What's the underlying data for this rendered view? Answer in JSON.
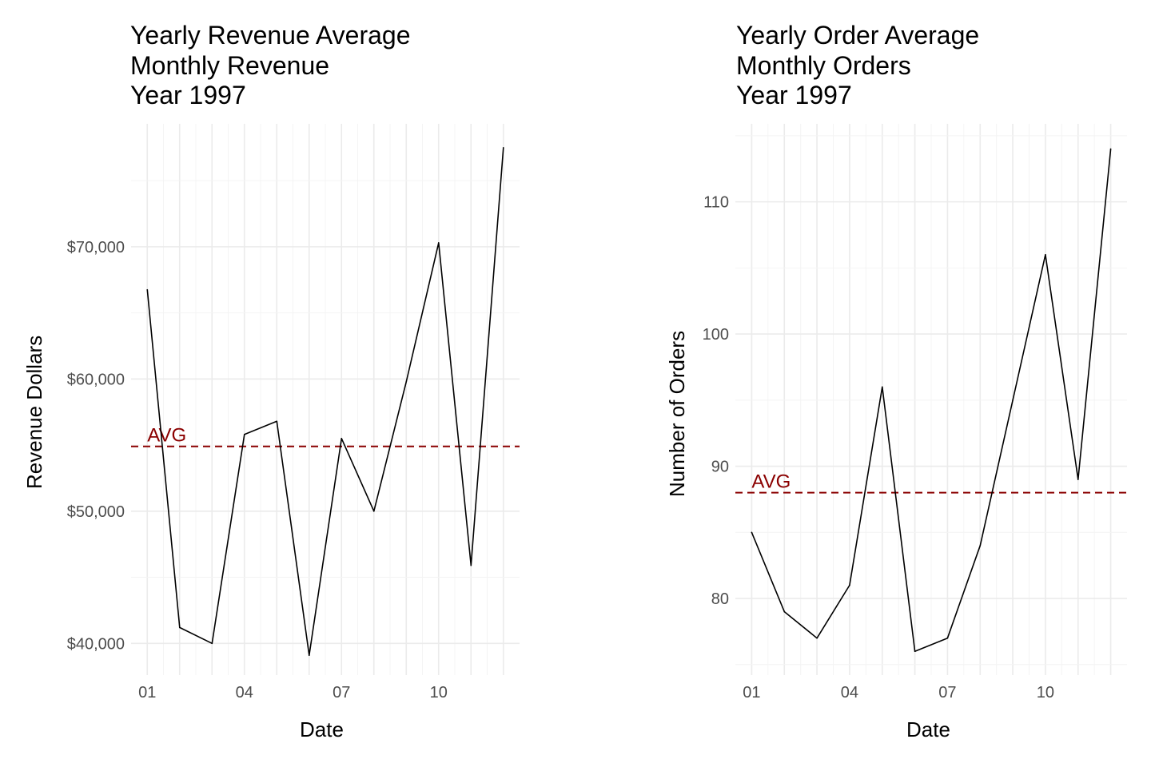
{
  "chart_data": [
    {
      "type": "line",
      "title": [
        "Yearly Revenue Average",
        "Monthly Revenue",
        "Year 1997"
      ],
      "xlabel": "Date",
      "ylabel": "Revenue Dollars",
      "x": [
        "01",
        "02",
        "03",
        "04",
        "05",
        "06",
        "07",
        "08",
        "09",
        "10",
        "11",
        "12"
      ],
      "x_tick_labels": [
        "01",
        "04",
        "07",
        "10"
      ],
      "y_tick_labels": [
        "$40,000",
        "$50,000",
        "$60,000",
        "$70,000"
      ],
      "y_ticks": [
        40000,
        50000,
        60000,
        70000
      ],
      "series": [
        {
          "values": [
            66750,
            41200,
            40000,
            55800,
            56800,
            39100,
            55500,
            50000,
            59800,
            70300,
            45900,
            77500
          ]
        }
      ],
      "reference_line": {
        "label": "AVG",
        "value": 54900,
        "style": "dashed",
        "color": "#8b0000"
      },
      "xlim": [
        0.5,
        12.5
      ],
      "ylim": [
        37600,
        79300
      ],
      "grid": true,
      "line_color": "#000000"
    },
    {
      "type": "line",
      "title": [
        "Yearly Order Average",
        "Monthly Orders",
        "Year 1997"
      ],
      "xlabel": "Date",
      "ylabel": "Number of Orders",
      "x": [
        "01",
        "02",
        "03",
        "04",
        "05",
        "06",
        "07",
        "08",
        "09",
        "10",
        "11",
        "12"
      ],
      "x_tick_labels": [
        "01",
        "04",
        "07",
        "10"
      ],
      "y_tick_labels": [
        "80",
        "90",
        "100",
        "110"
      ],
      "y_ticks": [
        80,
        90,
        100,
        110
      ],
      "series": [
        {
          "values": [
            85,
            79,
            77,
            81,
            96,
            76,
            77,
            84,
            95,
            106,
            89,
            114
          ]
        }
      ],
      "reference_line": {
        "label": "AVG",
        "value": 88,
        "style": "dashed",
        "color": "#8b0000"
      },
      "xlim": [
        0.5,
        12.5
      ],
      "ylim": [
        74.2,
        115.9
      ],
      "grid": true,
      "line_color": "#000000"
    }
  ]
}
